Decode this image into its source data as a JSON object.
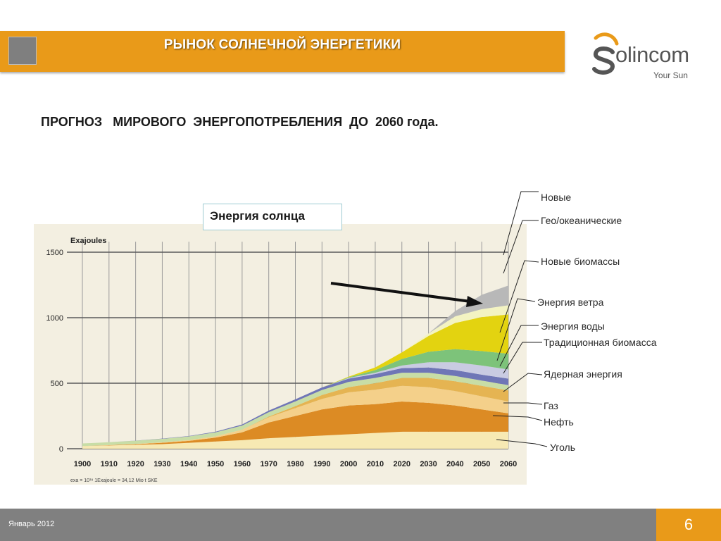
{
  "header": {
    "title": "РЫНОК СОЛНЕЧНОЙ ЭНЕРГЕТИКИ"
  },
  "logo": {
    "text": "olincom",
    "subtitle": "Your Sun",
    "accent_color": "#e99a19"
  },
  "subtitle": "ПРОГНОЗ   МИРОВОГО  ЭНЕРГОПОТРЕБЛЕНИЯ  ДО  2060 года.",
  "callout": "Энергия солнца",
  "footer": {
    "date": "Январь  2012",
    "page": "6"
  },
  "chart_data": {
    "type": "area",
    "ylabel": "Exajoules",
    "footnote": "exa = 10¹⁸  1Exajoule = 34,12 Mio t SKE",
    "x": [
      1900,
      1910,
      1920,
      1930,
      1940,
      1950,
      1960,
      1970,
      1980,
      1990,
      2000,
      2010,
      2020,
      2030,
      2040,
      2050,
      2060
    ],
    "xlim": [
      1900,
      2060
    ],
    "ylim": [
      0,
      1600
    ],
    "yticks": [
      0,
      500,
      1000,
      1500
    ],
    "series": [
      {
        "name": "Уголь",
        "color": "#f7e9b3",
        "values": [
          20,
          25,
          30,
          35,
          45,
          55,
          65,
          80,
          90,
          100,
          110,
          120,
          130,
          130,
          130,
          130,
          130
        ]
      },
      {
        "name": "Нефть",
        "color": "#dc8b24",
        "values": [
          0,
          2,
          5,
          10,
          15,
          30,
          60,
          120,
          160,
          200,
          220,
          220,
          230,
          220,
          200,
          170,
          140
        ]
      },
      {
        "name": "Газ",
        "color": "#f4d08a",
        "values": [
          0,
          1,
          2,
          4,
          6,
          10,
          20,
          40,
          60,
          80,
          100,
          110,
          120,
          120,
          110,
          100,
          90
        ]
      },
      {
        "name": "Ядерная энергия",
        "color": "#e5b452",
        "values": [
          0,
          0,
          0,
          0,
          0,
          0,
          0,
          5,
          15,
          30,
          40,
          50,
          60,
          70,
          75,
          80,
          85
        ]
      },
      {
        "name": "Традиционная биомасса",
        "color": "#c8dda6",
        "values": [
          20,
          22,
          24,
          26,
          28,
          30,
          32,
          34,
          36,
          38,
          40,
          40,
          40,
          40,
          40,
          40,
          40
        ]
      },
      {
        "name": "Энергия воды",
        "color": "#6f76b6",
        "values": [
          0,
          0,
          1,
          2,
          3,
          5,
          8,
          12,
          16,
          20,
          25,
          30,
          35,
          40,
          45,
          45,
          50
        ]
      },
      {
        "name": "Энергия ветра",
        "color": "#c9cbe2",
        "values": [
          0,
          0,
          0,
          0,
          0,
          0,
          0,
          0,
          0,
          0,
          5,
          10,
          20,
          40,
          60,
          70,
          70
        ]
      },
      {
        "name": "Новые биомассы",
        "color": "#7dc37a",
        "values": [
          0,
          0,
          0,
          0,
          0,
          0,
          0,
          0,
          0,
          0,
          5,
          20,
          50,
          80,
          100,
          110,
          120
        ]
      },
      {
        "name": "Энергия солнца",
        "color": "#e3d310",
        "values": [
          0,
          0,
          0,
          0,
          0,
          0,
          0,
          0,
          0,
          0,
          5,
          20,
          50,
          120,
          200,
          260,
          300
        ]
      },
      {
        "name": "Гео/океанические",
        "color": "#f3f3c2",
        "values": [
          0,
          0,
          0,
          0,
          0,
          0,
          0,
          0,
          0,
          0,
          0,
          0,
          0,
          20,
          50,
          60,
          70
        ]
      },
      {
        "name": "Новые",
        "color": "#b8b8b8",
        "values": [
          0,
          0,
          0,
          0,
          0,
          0,
          0,
          0,
          0,
          0,
          0,
          0,
          0,
          0,
          40,
          110,
          150
        ]
      }
    ],
    "labels": [
      "Новые",
      "Гео/океанические",
      "Новые биомассы",
      "Энергия ветра",
      "Энергия воды",
      "Традиционная биомасса",
      "Ядерная энергия",
      "Газ",
      "Нефть",
      "Уголь"
    ]
  }
}
